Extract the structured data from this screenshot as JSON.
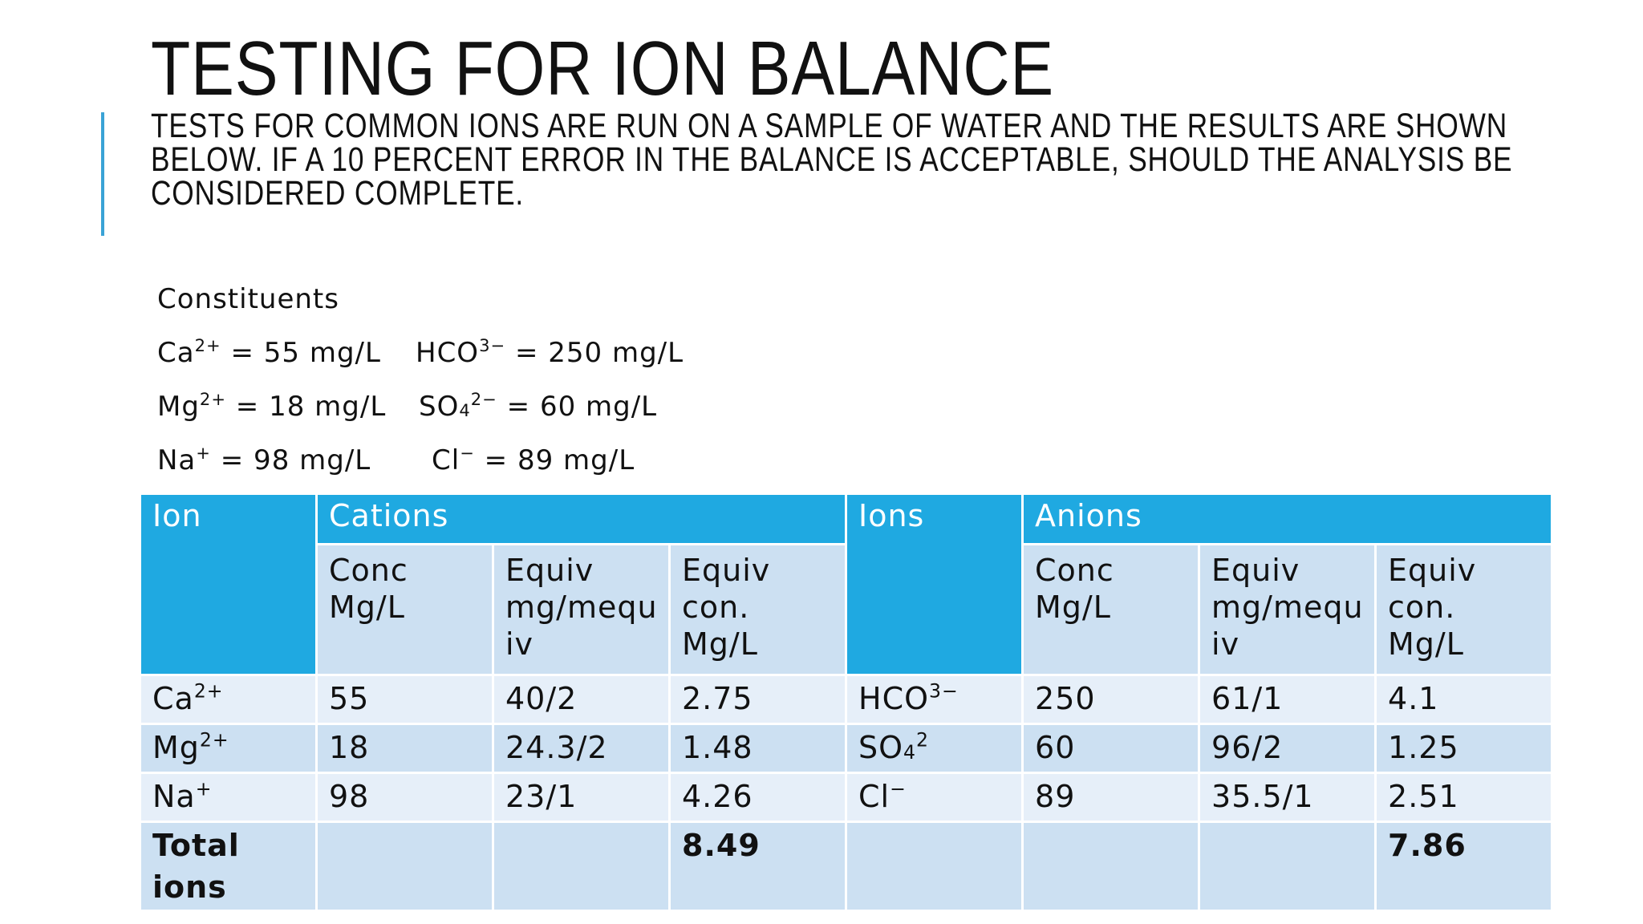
{
  "title": "TESTING FOR ION BALANCE",
  "subtitle": "TESTS FOR COMMON IONS ARE RUN ON A SAMPLE OF WATER  AND THE RESULTS ARE SHOWN BELOW. IF A 10 PERCENT ERROR IN THE BALANCE IS ACCEPTABLE, SHOULD THE ANALYSIS BE CONSIDERED COMPLETE.",
  "accent_color": "#3aa3d6",
  "table_header_color": "#1fa9e1",
  "constituents": {
    "heading": "Constituents",
    "rows": [
      {
        "cation": {
          "base": "Ca",
          "sup": "2+",
          "sub": "",
          "value": " = 55 mg/L"
        },
        "anion": {
          "base": "HCO",
          "sup": "3−",
          "sub": "",
          "value": " = 250 mg/L"
        }
      },
      {
        "cation": {
          "base": "Mg",
          "sup": "2+",
          "sub": "",
          "value": " = 18 mg/L"
        },
        "anion": {
          "base": "SO",
          "sub": "4",
          "sup": "2−",
          "value": " = 60 mg/L"
        }
      },
      {
        "cation": {
          "base": "Na",
          "sup": "+",
          "sub": "",
          "value": " = 98 mg/L"
        },
        "anion": {
          "base": "Cl",
          "sup": "−",
          "sub": "",
          "value": " = 89 mg/L"
        }
      }
    ]
  },
  "table": {
    "headers": {
      "ion": "Ion",
      "cations": "Cations",
      "ions": "Ions",
      "anions": "Anions"
    },
    "subheaders": {
      "conc": "Conc Mg/L",
      "equiv_weight": "Equiv mg/mequ iv",
      "equiv_conc": "Equiv con. Mg/L"
    },
    "rows": [
      {
        "cation": {
          "base": "Ca",
          "sup": "2+",
          "sub": ""
        },
        "conc": "55",
        "equiv": "40/2",
        "equiv_conc": "2.75",
        "anion": {
          "base": "HCO",
          "sup": "3−",
          "sub": ""
        },
        "a_conc": "250",
        "a_equiv": "61/1",
        "a_equiv_conc": "4.1"
      },
      {
        "cation": {
          "base": "Mg",
          "sup": "2+",
          "sub": ""
        },
        "conc": "18",
        "equiv": "24.3/2",
        "equiv_conc": "1.48",
        "anion": {
          "base": "SO",
          "sub": "4",
          "sup": "2"
        },
        "a_conc": "60",
        "a_equiv": "96/2",
        "a_equiv_conc": "1.25"
      },
      {
        "cation": {
          "base": "Na",
          "sup": "+",
          "sub": ""
        },
        "conc": "98",
        "equiv": "23/1",
        "equiv_conc": "4.26",
        "anion": {
          "base": "Cl",
          "sup": "−",
          "sub": ""
        },
        "a_conc": "89",
        "a_equiv": "35.5/1",
        "a_equiv_conc": "2.51"
      }
    ],
    "total": {
      "label": "Total ions",
      "cation_total": "8.49",
      "anion_total": "7.86"
    }
  }
}
